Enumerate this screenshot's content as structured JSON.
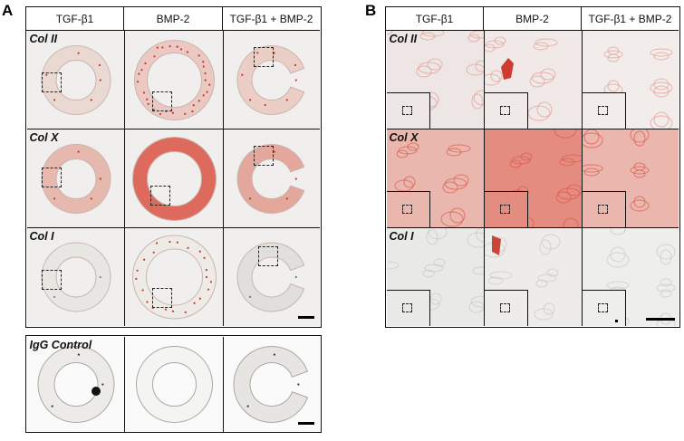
{
  "figure": {
    "panel_a": {
      "letter": "A",
      "columns": [
        "TGF-β1",
        "BMP-2",
        "TGF-β1 + BMP-2"
      ],
      "rows": [
        "Col II",
        "Col X",
        "Col I"
      ],
      "control_label": "IgG Control"
    },
    "panel_b": {
      "letter": "B",
      "columns": [
        "TGF-β1",
        "BMP-2",
        "TGF-β1 + BMP-2"
      ],
      "rows": [
        "Col II",
        "Col X",
        "Col I"
      ]
    },
    "colors": {
      "stain_light": "#ecc8c2",
      "stain_medium": "#e69a8e",
      "stain_strong": "#dd6a5c",
      "tissue_gray": "#e4e3df",
      "background": "#f1f0ee"
    }
  }
}
